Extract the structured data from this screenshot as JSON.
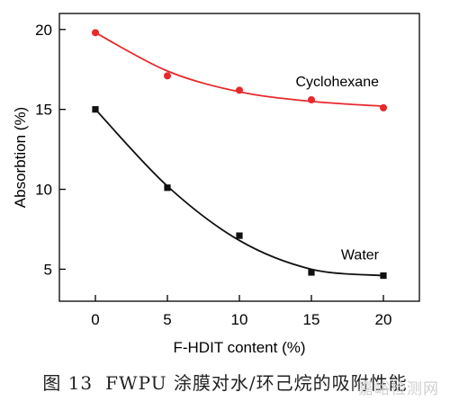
{
  "chart_data": {
    "type": "scatter",
    "xlabel": "F-HDIT content (%)",
    "ylabel": "Absorbtion (%)",
    "xlim": [
      -2.5,
      22.5
    ],
    "ylim": [
      3,
      21
    ],
    "x_ticks": [
      0,
      5,
      10,
      15,
      20
    ],
    "y_ticks": [
      5,
      10,
      15,
      20
    ],
    "grid": false,
    "series": [
      {
        "name": "Cyclohexane",
        "marker": "circle",
        "color": "#e8282b",
        "x": [
          0,
          5,
          10,
          15,
          20
        ],
        "y": [
          19.8,
          17.1,
          16.2,
          15.6,
          15.1
        ],
        "fit": [
          19.8,
          17.4,
          16.1,
          15.5,
          15.2
        ]
      },
      {
        "name": "Water",
        "marker": "square",
        "color": "#111111",
        "x": [
          0,
          5,
          10,
          15,
          20
        ],
        "y": [
          15.0,
          10.1,
          7.1,
          4.8,
          4.6
        ],
        "fit": [
          15.0,
          10.2,
          6.8,
          5.0,
          4.6
        ]
      }
    ]
  },
  "caption": {
    "figure_number": "图 13",
    "text": "FWPU 涂膜对水/环己烷的吸附性能"
  },
  "watermark": "嘉峪检测网"
}
